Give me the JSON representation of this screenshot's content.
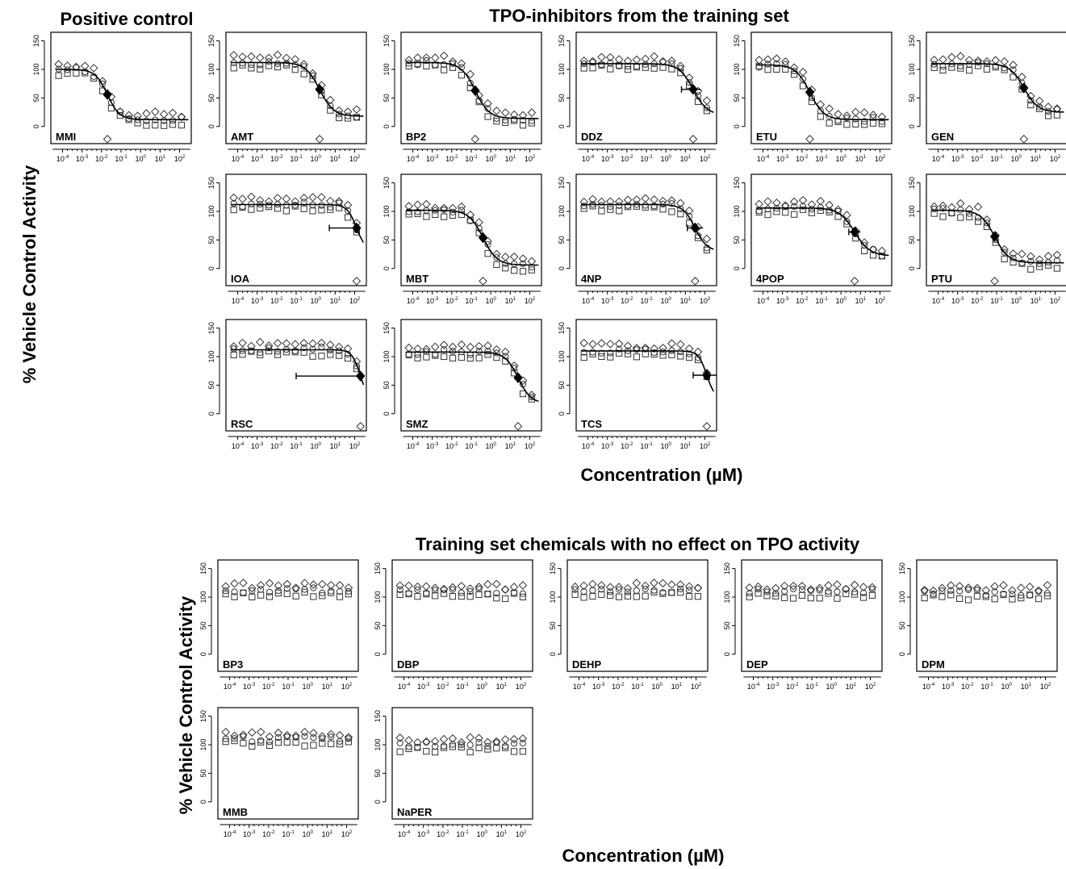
{
  "titles": {
    "positive_control": "Positive control",
    "inhibitors": "TPO-inhibitors from the training set",
    "no_effect": "Training set chemicals with no effect on TPO activity"
  },
  "axis_labels": {
    "y": "% Vehicle Control Activity",
    "x": "Concentration (µM)"
  },
  "chart_data": {
    "type": "scatter",
    "x_scale": "log10",
    "x_ticks": [
      "10-4",
      "10-3",
      "10-2",
      "10-1",
      "100",
      "101",
      "102"
    ],
    "y_ticks": [
      0,
      50,
      100,
      150
    ],
    "ylim": [
      -30,
      165
    ],
    "series_markers": [
      "diamond",
      "circle",
      "square"
    ],
    "panels": [
      {
        "label": "MMI",
        "group": "positive_control",
        "top": 100,
        "bottom": 12,
        "log_ac50": -1.7,
        "slope": 1.4,
        "ci": null,
        "scatter": [
          [
            14,
            -2,
            -24
          ],
          [
            -3,
            4,
            -14
          ]
        ]
      },
      {
        "label": "AMT",
        "group": "inhibitor",
        "top": 112,
        "bottom": 18,
        "log_ac50": 0.2,
        "slope": 1.2,
        "ci": null
      },
      {
        "label": "BP2",
        "group": "inhibitor",
        "top": 112,
        "bottom": 14,
        "log_ac50": -0.8,
        "slope": 1.2,
        "ci": null
      },
      {
        "label": "DDZ",
        "group": "inhibitor",
        "top": 110,
        "bottom": 20,
        "log_ac50": 1.4,
        "slope": 1.2,
        "ci": [
          0.8,
          1.8
        ]
      },
      {
        "label": "ETU",
        "group": "inhibitor",
        "top": 108,
        "bottom": 12,
        "log_ac50": -1.6,
        "slope": 1.2,
        "ci": null
      },
      {
        "label": "GEN",
        "group": "inhibitor",
        "top": 110,
        "bottom": 25,
        "log_ac50": 0.4,
        "slope": 1.2,
        "ci": null
      },
      {
        "label": "IOA",
        "group": "inhibitor",
        "top": 112,
        "bottom": 30,
        "log_ac50": 2.1,
        "slope": 1.8,
        "ci": [
          0.7,
          2.3
        ]
      },
      {
        "label": "MBT",
        "group": "inhibitor",
        "top": 102,
        "bottom": 6,
        "log_ac50": -0.4,
        "slope": 1.2,
        "ci": null
      },
      {
        "label": "4NP",
        "group": "inhibitor",
        "top": 112,
        "bottom": 30,
        "log_ac50": 1.5,
        "slope": 1.4,
        "ci": [
          1.1,
          1.9
        ]
      },
      {
        "label": "4POP",
        "group": "inhibitor",
        "top": 106,
        "bottom": 22,
        "log_ac50": 0.7,
        "slope": 1.1,
        "ci": [
          0.4,
          1.0
        ]
      },
      {
        "label": "PTU",
        "group": "inhibitor",
        "top": 102,
        "bottom": 10,
        "log_ac50": -1.1,
        "slope": 1.2,
        "ci": null
      },
      {
        "label": "RSC",
        "group": "inhibitor",
        "top": 112,
        "bottom": 20,
        "log_ac50": 2.3,
        "slope": 2.0,
        "ci": [
          -1.0,
          2.4
        ]
      },
      {
        "label": "SMZ",
        "group": "inhibitor",
        "top": 108,
        "bottom": 18,
        "log_ac50": 1.4,
        "slope": 1.3,
        "ci": null
      },
      {
        "label": "TCS",
        "group": "inhibitor",
        "top": 110,
        "bottom": 25,
        "log_ac50": 2.1,
        "slope": 2.0,
        "ci": [
          1.4,
          2.6
        ]
      },
      {
        "label": "BP3",
        "group": "no_effect",
        "level": 112
      },
      {
        "label": "DBP",
        "group": "no_effect",
        "level": 110
      },
      {
        "label": "DEHP",
        "group": "no_effect",
        "level": 112
      },
      {
        "label": "DEP",
        "group": "no_effect",
        "level": 110
      },
      {
        "label": "DPM",
        "group": "no_effect",
        "level": 108
      },
      {
        "label": "MMB",
        "group": "no_effect",
        "level": 110
      },
      {
        "label": "NaPER",
        "group": "no_effect",
        "level": 100
      }
    ]
  }
}
